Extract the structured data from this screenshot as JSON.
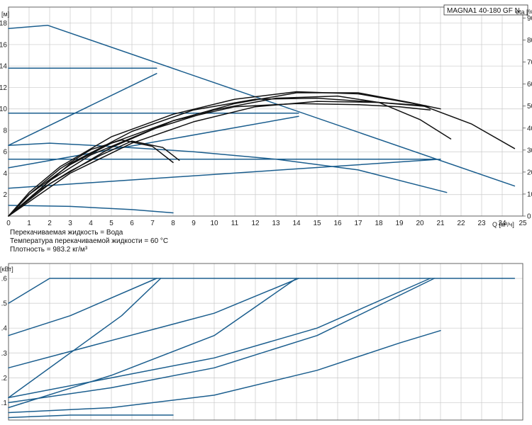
{
  "chart_data": [
    {
      "type": "line",
      "model": "MAGNA1 40-180 GF N",
      "x_unit": "Q [м³/ч]",
      "x_ticks": [
        "0",
        "1",
        "2",
        "3",
        "4",
        "5",
        "6",
        "7",
        "8",
        "9",
        "10",
        "11",
        "12",
        "13",
        "14",
        "15",
        "16",
        "17",
        "18",
        "19",
        "20",
        "21",
        "22",
        "23",
        "24",
        "25"
      ],
      "xlim": [
        0,
        25
      ],
      "y_left_unit": "[м]",
      "y_left_ticks": [
        "2",
        "4",
        "6",
        "8",
        "10",
        "12",
        "14",
        "16",
        "18"
      ],
      "ylim": [
        0,
        19.5
      ],
      "y_right_unit": "eta [%]",
      "y_right_ticks": [
        "0",
        "10",
        "20",
        "30",
        "40",
        "50",
        "60",
        "70",
        "80",
        "90"
      ],
      "y_right_lim": [
        0,
        95
      ],
      "series": [
        {
          "color": "#1b5e8e",
          "points": [
            [
              0,
              17.5
            ],
            [
              1.9,
              17.8
            ],
            [
              24.6,
              2.8
            ]
          ]
        },
        {
          "color": "#1b5e8e",
          "points": [
            [
              0,
              13.8
            ],
            [
              7.2,
              13.8
            ]
          ]
        },
        {
          "color": "#1b5e8e",
          "points": [
            [
              0,
              9.6
            ],
            [
              14.1,
              9.6
            ]
          ]
        },
        {
          "color": "#1b5e8e",
          "points": [
            [
              0,
              6.6
            ],
            [
              7.2,
              13.3
            ]
          ]
        },
        {
          "color": "#1b5e8e",
          "points": [
            [
              0,
              4.5
            ],
            [
              14.1,
              9.3
            ]
          ]
        },
        {
          "color": "#1b5e8e",
          "points": [
            [
              0,
              6.6
            ],
            [
              2,
              6.8
            ],
            [
              5,
              6.5
            ],
            [
              9,
              6
            ],
            [
              13,
              5.3
            ],
            [
              17,
              4.3
            ],
            [
              21.3,
              2.2
            ]
          ]
        },
        {
          "color": "#1b5e8e",
          "points": [
            [
              0,
              5.3
            ],
            [
              20.7,
              5.3
            ]
          ]
        },
        {
          "color": "#1b5e8e",
          "points": [
            [
              0,
              2.6
            ],
            [
              21,
              5.3
            ]
          ]
        },
        {
          "color": "#1b5e8e",
          "points": [
            [
              0,
              1
            ],
            [
              3,
              0.9
            ],
            [
              6,
              0.6
            ],
            [
              8,
              0.3
            ]
          ]
        },
        {
          "color": "#111111",
          "points": [
            [
              0,
              0
            ],
            [
              1,
              2.2
            ],
            [
              2.5,
              4.6
            ],
            [
              5,
              7.4
            ],
            [
              8,
              9.5
            ],
            [
              11,
              10.9
            ],
            [
              14,
              11.6
            ],
            [
              17,
              11.4
            ],
            [
              20,
              10.4
            ],
            [
              22.5,
              8.6
            ],
            [
              24.6,
              6.3
            ]
          ]
        },
        {
          "color": "#111111",
          "points": [
            [
              0,
              0
            ],
            [
              1,
              2
            ],
            [
              3,
              4.8
            ],
            [
              5,
              6.8
            ],
            [
              8,
              8.9
            ],
            [
              11,
              10.2
            ],
            [
              14,
              10.5
            ],
            [
              17,
              10.4
            ],
            [
              19,
              10.2
            ],
            [
              20.5,
              9.9
            ]
          ]
        },
        {
          "color": "#111111",
          "points": [
            [
              0,
              0
            ],
            [
              2,
              3.3
            ],
            [
              4,
              5.7
            ],
            [
              7,
              8.1
            ],
            [
              10,
              9.9
            ],
            [
              13,
              11
            ],
            [
              16,
              11.2
            ],
            [
              18,
              10.6
            ],
            [
              20,
              9
            ],
            [
              21.5,
              7.2
            ]
          ]
        },
        {
          "color": "#111111",
          "points": [
            [
              0,
              0
            ],
            [
              1,
              2
            ],
            [
              2.5,
              4.4
            ],
            [
              4,
              6.2
            ],
            [
              5.5,
              7.1
            ],
            [
              7,
              6.5
            ],
            [
              8,
              5
            ]
          ]
        },
        {
          "color": "#111111",
          "points": [
            [
              0,
              0
            ],
            [
              1.5,
              2.4
            ],
            [
              3,
              4.2
            ],
            [
              4.5,
              5.7
            ],
            [
              6,
              7
            ],
            [
              7.5,
              6.4
            ],
            [
              8.3,
              5.2
            ]
          ]
        },
        {
          "color": "#111111",
          "points": [
            [
              0,
              0
            ],
            [
              3,
              4
            ],
            [
              6,
              6.8
            ],
            [
              9,
              8.8
            ],
            [
              12,
              10.2
            ],
            [
              15,
              10.7
            ],
            [
              18,
              10.6
            ],
            [
              20.5,
              10.2
            ]
          ]
        },
        {
          "color": "#111111",
          "points": [
            [
              0,
              0
            ],
            [
              2,
              3
            ],
            [
              5,
              6.4
            ],
            [
              8,
              8.9
            ],
            [
              11,
              10.5
            ],
            [
              14,
              11.5
            ],
            [
              17,
              11.5
            ],
            [
              19.5,
              10.6
            ],
            [
              21,
              10
            ]
          ]
        },
        {
          "color": "#111111",
          "points": [
            [
              0,
              0
            ],
            [
              3,
              4.9
            ],
            [
              6,
              7.9
            ],
            [
              9,
              9.9
            ],
            [
              12,
              10.9
            ],
            [
              15,
              11
            ],
            [
              18,
              10.6
            ],
            [
              20.3,
              10.3
            ]
          ]
        }
      ]
    },
    {
      "type": "line",
      "y_left_unit": "[кВт]",
      "y_left_ticks": [
        "0.1",
        "0.2",
        "0.3",
        "0.4",
        "0.5",
        "0.6"
      ],
      "ylim": [
        0.03,
        0.66
      ],
      "xlim": [
        0,
        25
      ],
      "series": [
        {
          "color": "#1b5e8e",
          "points": [
            [
              0,
              0.5
            ],
            [
              2,
              0.6
            ],
            [
              24.6,
              0.6
            ]
          ]
        },
        {
          "color": "#1b5e8e",
          "points": [
            [
              0,
              0.37
            ],
            [
              3,
              0.45
            ],
            [
              7.2,
              0.6
            ]
          ]
        },
        {
          "color": "#1b5e8e",
          "points": [
            [
              0,
              0.24
            ],
            [
              5,
              0.35
            ],
            [
              10,
              0.46
            ],
            [
              14.1,
              0.6
            ]
          ]
        },
        {
          "color": "#1b5e8e",
          "points": [
            [
              0,
              0.12
            ],
            [
              3,
              0.3
            ],
            [
              5.5,
              0.45
            ],
            [
              7.4,
              0.6
            ]
          ]
        },
        {
          "color": "#1b5e8e",
          "points": [
            [
              0,
              0.08
            ],
            [
              5,
              0.21
            ],
            [
              10,
              0.37
            ],
            [
              14,
              0.6
            ]
          ]
        },
        {
          "color": "#1b5e8e",
          "points": [
            [
              0,
              0.12
            ],
            [
              5,
              0.2
            ],
            [
              10,
              0.28
            ],
            [
              15,
              0.4
            ],
            [
              20.5,
              0.6
            ]
          ]
        },
        {
          "color": "#1b5e8e",
          "points": [
            [
              0,
              0.1
            ],
            [
              5,
              0.16
            ],
            [
              10,
              0.24
            ],
            [
              15,
              0.37
            ],
            [
              20.7,
              0.6
            ]
          ]
        },
        {
          "color": "#1b5e8e",
          "points": [
            [
              0,
              0.06
            ],
            [
              5,
              0.08
            ],
            [
              10,
              0.13
            ],
            [
              15,
              0.23
            ],
            [
              19,
              0.34
            ],
            [
              21,
              0.39
            ]
          ]
        },
        {
          "color": "#1b5e8e",
          "points": [
            [
              0,
              0.04
            ],
            [
              3,
              0.05
            ],
            [
              8,
              0.05
            ]
          ]
        }
      ]
    }
  ],
  "fluid": {
    "line1": "Перекачиваемая жидкость = Вода",
    "line2": "Температура перекачиваемой жидкости = 60 °C",
    "line3": "Плотность = 983.2 кг/м³"
  }
}
